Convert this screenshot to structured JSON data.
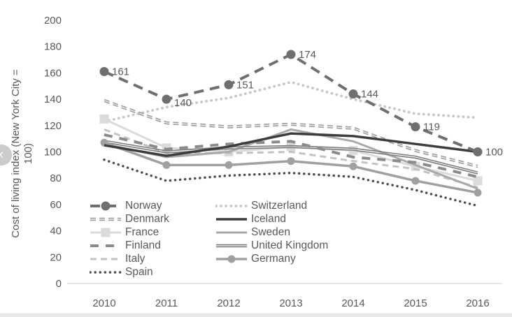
{
  "nav": {
    "prev_icon": "‹"
  },
  "chart_data": {
    "type": "line",
    "title": "",
    "ylabel_line1": "Cost of living index (New York City =",
    "ylabel_line2": "100)",
    "x": [
      "2010",
      "2011",
      "2012",
      "2013",
      "2014",
      "2015",
      "2016"
    ],
    "ylim": [
      0,
      200
    ],
    "ytick_step": 20,
    "grid": false,
    "legend_position": "inside bottom-left, two columns",
    "axis_color": "#d6d6d6",
    "text_color": "#595959",
    "series": [
      {
        "name": "Norway",
        "color": "#6f6f6f",
        "style": "dash",
        "width": 4,
        "dash": "14 9",
        "marker": "circle",
        "marker_size": 6.5,
        "show_labels": true,
        "values": [
          161,
          140,
          151,
          174,
          144,
          119,
          100
        ]
      },
      {
        "name": "Switzerland",
        "color": "#c7c7c7",
        "style": "dots",
        "width": 3.8,
        "values": [
          123,
          134,
          141,
          153,
          140,
          129,
          126
        ]
      },
      {
        "name": "Denmark",
        "color": "#9b9b9b",
        "style": "double-dash",
        "values": [
          139,
          122,
          119,
          121,
          118,
          101,
          89
        ]
      },
      {
        "name": "Iceland",
        "color": "#3d3d3d",
        "style": "solid",
        "width": 3.5,
        "values": [
          105,
          97,
          104,
          114,
          112,
          106,
          100
        ]
      },
      {
        "name": "France",
        "color": "#dbdbdb",
        "style": "solid",
        "width": 3,
        "marker": "square",
        "marker_size": 6.5,
        "values": [
          125,
          103,
          100,
          104,
          101,
          89,
          78
        ]
      },
      {
        "name": "Sweden",
        "color": "#a9a9a9",
        "style": "solid",
        "width": 3,
        "values": [
          106,
          96,
          100,
          117,
          108,
          90,
          72
        ]
      },
      {
        "name": "Finland",
        "color": "#8b8b8b",
        "style": "dash",
        "width": 4,
        "dash": "12 10",
        "values": [
          113,
          102,
          106,
          108,
          96,
          92,
          81
        ]
      },
      {
        "name": "United Kingdom",
        "color": "#7d7d7d",
        "style": "double-solid",
        "values": [
          108,
          100,
          103,
          104,
          102,
          96,
          84
        ]
      },
      {
        "name": "Italy",
        "color": "#c3c3c3",
        "style": "dash",
        "width": 3,
        "dash": "9 6",
        "values": [
          117,
          99,
          99,
          100,
          93,
          87,
          73
        ]
      },
      {
        "name": "Germany",
        "color": "#a0a0a0",
        "style": "solid",
        "width": 3.5,
        "marker": "circle",
        "marker_size": 5.5,
        "values": [
          107,
          90,
          90,
          93,
          89,
          78,
          69
        ]
      },
      {
        "name": "Spain",
        "color": "#4d4d4d",
        "style": "dots",
        "width": 3.5,
        "values": [
          94,
          78,
          82,
          84,
          81,
          71,
          59
        ]
      }
    ],
    "legend_columns": [
      [
        "Norway",
        "Denmark",
        "France",
        "Finland",
        "Italy",
        "Spain"
      ],
      [
        "Switzerland",
        "Iceland",
        "Sweden",
        "United Kingdom",
        "Germany"
      ]
    ]
  }
}
